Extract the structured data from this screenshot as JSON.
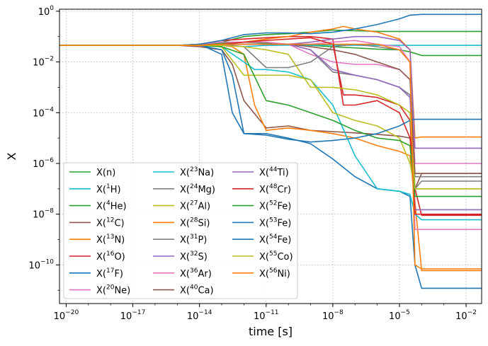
{
  "chart_data": {
    "type": "line",
    "title": "",
    "xlabel": "time [s]",
    "ylabel": "X",
    "xscale": "log",
    "yscale": "log",
    "xlim": [
      5e-21,
      0.05
    ],
    "ylim": [
      3e-12,
      1.2
    ],
    "x_ticks": [
      {
        "value": 1e-20,
        "base": "10",
        "exp": "−20"
      },
      {
        "value": 1e-17,
        "base": "10",
        "exp": "−17"
      },
      {
        "value": 1e-14,
        "base": "10",
        "exp": "−14"
      },
      {
        "value": 1e-11,
        "base": "10",
        "exp": "−11"
      },
      {
        "value": 1e-08,
        "base": "10",
        "exp": "−8"
      },
      {
        "value": 1e-05,
        "base": "10",
        "exp": "−5"
      },
      {
        "value": 0.01,
        "base": "10",
        "exp": "−2"
      }
    ],
    "y_ticks": [
      {
        "value": 1,
        "base": "10",
        "exp": "0"
      },
      {
        "value": 0.01,
        "base": "10",
        "exp": "−2"
      },
      {
        "value": 0.0001,
        "base": "10",
        "exp": "−4"
      },
      {
        "value": 1e-06,
        "base": "10",
        "exp": "−6"
      },
      {
        "value": 1e-08,
        "base": "10",
        "exp": "−8"
      },
      {
        "value": 1e-10,
        "base": "10",
        "exp": "−10"
      }
    ],
    "grid": true,
    "legend": {
      "placement": "lower-left",
      "columns": 3
    },
    "series": [
      {
        "pre": "X(",
        "sup": "",
        "el": "n",
        "post": ")",
        "color": "#2ca02c",
        "x": [
          5e-21,
          1e-15,
          1e-12,
          1e-10,
          1e-08,
          1e-06,
          1e-05,
          3e-05,
          0.0001,
          0.05
        ],
        "y": [
          0.045,
          0.045,
          0.06,
          0.05,
          0.04,
          0.032,
          0.03,
          0.025,
          0.018,
          0.018
        ]
      },
      {
        "pre": "X(",
        "sup": "1",
        "el": "H",
        "post": ")",
        "color": "#17becf",
        "x": [
          5e-21,
          1e-14,
          1e-13,
          1e-12,
          1e-11,
          1e-10,
          1e-09,
          1e-08,
          1e-07,
          1e-06,
          0.05
        ],
        "y": [
          0.045,
          0.045,
          0.05,
          0.04,
          0.045,
          0.046,
          0.046,
          0.046,
          0.045,
          0.045,
          0.045
        ]
      },
      {
        "pre": "X(",
        "sup": "4",
        "el": "He",
        "post": ")",
        "color": "#2ca02c",
        "x": [
          5e-21,
          1e-14,
          1e-13,
          1e-12,
          1e-11,
          1e-10,
          1e-09,
          1e-08,
          1e-07,
          1e-06,
          1e-05,
          0.05
        ],
        "y": [
          0.045,
          0.045,
          0.06,
          0.1,
          0.12,
          0.13,
          0.15,
          0.18,
          0.17,
          0.16,
          0.16,
          0.16
        ]
      },
      {
        "pre": "X(",
        "sup": "12",
        "el": "C",
        "post": ")",
        "color": "#8c564b",
        "x": [
          5e-21,
          1e-15,
          1e-14,
          1e-13,
          3e-13,
          1e-12,
          1e-11,
          1e-10,
          1e-09,
          1e-08,
          1e-07,
          1e-06,
          1e-05,
          3e-05,
          5e-05,
          0.0001,
          0.05
        ],
        "y": [
          0.045,
          0.045,
          0.04,
          0.03,
          0.008,
          0.0003,
          2.5e-05,
          3e-05,
          2e-05,
          1.8e-05,
          1.6e-05,
          1.4e-05,
          1.2e-05,
          1e-05,
          1e-07,
          4e-07,
          4e-07
        ]
      },
      {
        "pre": "X(",
        "sup": "13",
        "el": "N",
        "post": ")",
        "color": "#ff7f0e",
        "x": [
          5e-21,
          1e-15,
          1e-14,
          1e-13,
          3e-13,
          1e-12,
          3e-12,
          1e-11,
          1e-10,
          1e-09,
          1e-08,
          1e-07,
          1e-06,
          1e-05,
          3e-05,
          5e-05,
          0.0001,
          0.05
        ],
        "y": [
          0.045,
          0.045,
          0.045,
          0.045,
          0.04,
          0.02,
          0.0002,
          2e-05,
          2.5e-05,
          2e-05,
          1.5e-05,
          1e-05,
          5e-06,
          3e-06,
          2e-06,
          3e-08,
          6e-11,
          6e-11
        ]
      },
      {
        "pre": "X(",
        "sup": "16",
        "el": "O",
        "post": ")",
        "color": "#d62728",
        "x": [
          5e-21,
          1e-15,
          1e-14,
          1e-13,
          1e-12,
          1e-11,
          1e-10,
          1e-09,
          1e-08,
          3e-08,
          1e-07,
          1e-06,
          1e-05,
          3e-05,
          5e-05,
          0.0001,
          0.05
        ],
        "y": [
          0.045,
          0.045,
          0.05,
          0.07,
          0.08,
          0.09,
          0.1,
          0.1,
          0.08,
          0.0002,
          0.0002,
          0.0003,
          0.0001,
          1e-05,
          1e-07,
          9e-09,
          9e-09
        ]
      },
      {
        "pre": "X(",
        "sup": "17",
        "el": "F",
        "post": ")",
        "color": "#1f77b4",
        "x": [
          5e-21,
          1e-15,
          1e-14,
          1e-13,
          3e-13,
          1e-12,
          1e-11,
          1e-10,
          1e-09,
          1e-08,
          1e-07,
          1e-06,
          1e-05,
          3e-05,
          5e-05,
          0.0001,
          0.05
        ],
        "y": [
          0.045,
          0.045,
          0.05,
          0.02,
          0.0001,
          1.5e-05,
          1.5e-05,
          1e-05,
          6e-06,
          1.5e-06,
          3e-07,
          1e-07,
          8e-08,
          5e-08,
          1e-10,
          1.2e-11,
          1.2e-11
        ]
      },
      {
        "pre": "X(",
        "sup": "20",
        "el": "Ne",
        "post": ")",
        "color": "#e377c2",
        "x": [
          5e-21,
          1e-15,
          1e-14,
          1e-13,
          1e-12,
          1e-11,
          1e-10,
          1e-09,
          1e-08,
          1e-07,
          1e-06,
          1e-05,
          3e-05,
          5e-05,
          0.0001,
          0.05
        ],
        "y": [
          0.045,
          0.045,
          0.05,
          0.06,
          0.06,
          0.06,
          0.05,
          0.02,
          0.01,
          0.008,
          0.008,
          0.005,
          0.002,
          1e-06,
          1e-06,
          1e-06
        ]
      },
      {
        "pre": "X(",
        "sup": "23",
        "el": "Na",
        "post": ")",
        "color": "#17becf",
        "x": [
          5e-21,
          1e-15,
          1e-14,
          1e-13,
          1e-12,
          3e-12,
          1e-11,
          1e-10,
          1e-09,
          1e-08,
          1e-07,
          1e-06,
          1e-05,
          3e-05,
          5e-05,
          0.0001,
          0.05
        ],
        "y": [
          0.045,
          0.045,
          0.045,
          0.04,
          0.01,
          0.005,
          0.005,
          0.004,
          0.002,
          0.0002,
          2e-06,
          1e-07,
          8e-08,
          6e-08,
          1e-08,
          6e-09,
          6e-09
        ]
      },
      {
        "pre": "X(",
        "sup": "24",
        "el": "Mg",
        "post": ")",
        "color": "#7f7f7f",
        "x": [
          5e-21,
          1e-15,
          1e-14,
          1e-13,
          1e-12,
          1e-11,
          1e-10,
          1e-09,
          1e-08,
          1e-07,
          1e-06,
          1e-05,
          3e-05,
          5e-05,
          0.0001,
          0.05
        ],
        "y": [
          0.045,
          0.045,
          0.045,
          0.05,
          0.04,
          0.006,
          0.006,
          0.01,
          0.04,
          0.05,
          0.04,
          0.03,
          0.01,
          1e-07,
          2e-07,
          2e-07
        ]
      },
      {
        "pre": "X(",
        "sup": "27",
        "el": "Al",
        "post": ")",
        "color": "#bcbd22",
        "x": [
          5e-21,
          1e-15,
          1e-14,
          1e-13,
          1e-12,
          1e-11,
          1e-10,
          1e-09,
          1e-08,
          1e-07,
          1e-06,
          1e-05,
          3e-05,
          5e-05,
          0.0001,
          0.05
        ],
        "y": [
          0.045,
          0.045,
          0.045,
          0.04,
          0.003,
          0.003,
          0.003,
          0.002,
          0.0001,
          5e-05,
          3e-05,
          1e-05,
          1e-06,
          1e-07,
          1e-07,
          1e-07
        ]
      },
      {
        "pre": "X(",
        "sup": "28",
        "el": "Si",
        "post": ")",
        "color": "#ff7f0e",
        "x": [
          5e-21,
          1e-15,
          1e-14,
          1e-13,
          1e-12,
          1e-11,
          1e-10,
          1e-09,
          1e-08,
          3e-08,
          1e-07,
          1e-06,
          1e-05,
          3e-05,
          5e-05,
          0.0001,
          0.05
        ],
        "y": [
          0.045,
          0.045,
          0.045,
          0.05,
          0.06,
          0.08,
          0.1,
          0.15,
          0.2,
          0.25,
          0.2,
          0.15,
          0.08,
          0.03,
          1e-05,
          1.1e-05,
          1.1e-05
        ]
      },
      {
        "pre": "X(",
        "sup": "31",
        "el": "P",
        "post": ")",
        "color": "#7f7f7f",
        "x": [
          5e-21,
          1e-15,
          1e-14,
          1e-13,
          1e-12,
          1e-11,
          1e-10,
          1e-09,
          1e-08,
          1e-07,
          1e-06,
          1e-05,
          3e-05,
          5e-05,
          0.0001,
          0.05
        ],
        "y": [
          0.045,
          0.045,
          0.045,
          0.05,
          0.05,
          0.05,
          0.05,
          0.03,
          0.004,
          0.003,
          0.002,
          0.001,
          0.0005,
          3e-07,
          3e-07,
          3e-07
        ]
      },
      {
        "pre": "X(",
        "sup": "32",
        "el": "S",
        "post": ")",
        "color": "#9467bd",
        "x": [
          5e-21,
          1e-15,
          1e-14,
          1e-13,
          1e-12,
          1e-11,
          1e-10,
          1e-09,
          1e-08,
          1e-07,
          1e-06,
          1e-05,
          3e-05,
          5e-05,
          0.0001,
          0.05
        ],
        "y": [
          0.045,
          0.045,
          0.045,
          0.05,
          0.05,
          0.05,
          0.05,
          0.06,
          0.08,
          0.1,
          0.1,
          0.07,
          0.03,
          4e-06,
          4e-06,
          4e-06
        ]
      },
      {
        "pre": "X(",
        "sup": "36",
        "el": "Ar",
        "post": ")",
        "color": "#e377c2",
        "x": [
          5e-21,
          1e-15,
          1e-14,
          1e-13,
          1e-12,
          1e-11,
          1e-10,
          1e-09,
          1e-08,
          1e-07,
          1e-06,
          1e-05,
          3e-05,
          5e-05,
          0.0001,
          0.05
        ],
        "y": [
          0.045,
          0.045,
          0.045,
          0.05,
          0.05,
          0.05,
          0.05,
          0.05,
          0.06,
          0.07,
          0.05,
          0.04,
          0.01,
          2.5e-09,
          2.5e-09,
          2.5e-09
        ]
      },
      {
        "pre": "X(",
        "sup": "40",
        "el": "Ca",
        "post": ")",
        "color": "#8c564b",
        "x": [
          5e-21,
          1e-15,
          1e-14,
          1e-13,
          1e-12,
          1e-11,
          1e-10,
          1e-09,
          1e-08,
          1e-07,
          1e-06,
          1e-05,
          3e-05,
          5e-05,
          0.0001,
          0.05
        ],
        "y": [
          0.045,
          0.045,
          0.045,
          0.05,
          0.05,
          0.05,
          0.05,
          0.04,
          0.03,
          0.02,
          0.01,
          0.005,
          0.002,
          4e-07,
          4e-07,
          4e-07
        ]
      },
      {
        "pre": "X(",
        "sup": "44",
        "el": "Ti",
        "post": ")",
        "color": "#9467bd",
        "x": [
          5e-21,
          1e-15,
          1e-14,
          1e-13,
          1e-12,
          1e-11,
          1e-10,
          1e-09,
          1e-08,
          1e-07,
          1e-06,
          1e-05,
          3e-05,
          5e-05,
          0.0001,
          0.05
        ],
        "y": [
          0.045,
          0.045,
          0.045,
          0.05,
          0.05,
          0.05,
          0.05,
          0.03,
          0.005,
          0.003,
          0.002,
          0.001,
          0.0004,
          1.5e-08,
          1.5e-08,
          1.5e-08
        ]
      },
      {
        "pre": "X(",
        "sup": "48",
        "el": "Cr",
        "post": ")",
        "color": "#d62728",
        "x": [
          5e-21,
          1e-15,
          1e-14,
          1e-13,
          1e-12,
          1e-11,
          1e-10,
          1e-09,
          1e-08,
          3e-08,
          1e-07,
          1e-06,
          1e-05,
          3e-05,
          5e-05,
          0.0001,
          0.05
        ],
        "y": [
          0.045,
          0.045,
          0.045,
          0.05,
          0.06,
          0.07,
          0.08,
          0.09,
          0.05,
          0.0005,
          0.0005,
          0.0004,
          0.0002,
          5e-05,
          1e-08,
          1e-08,
          1e-08
        ]
      },
      {
        "pre": "X(",
        "sup": "52",
        "el": "Fe",
        "post": ")",
        "color": "#2ca02c",
        "x": [
          5e-21,
          1e-15,
          1e-14,
          1e-13,
          1e-12,
          1e-11,
          1e-10,
          1e-09,
          1e-08,
          1e-07,
          1e-06,
          1e-05,
          3e-05,
          5e-05,
          0.0001,
          0.05
        ],
        "y": [
          0.045,
          0.045,
          0.045,
          0.04,
          0.02,
          0.0003,
          0.0002,
          0.0001,
          5e-05,
          2e-05,
          1e-05,
          8e-06,
          5e-06,
          5e-08,
          5e-08,
          5e-08
        ]
      },
      {
        "pre": "X(",
        "sup": "53",
        "el": "Fe",
        "post": ")",
        "color": "#1f77b4",
        "x": [
          5e-21,
          1e-15,
          1e-14,
          1e-13,
          3e-13,
          1e-12,
          1e-11,
          1e-10,
          1e-09,
          1e-08,
          1e-07,
          1e-06,
          1e-05,
          3e-05,
          5e-05,
          0.0001,
          0.05
        ],
        "y": [
          0.045,
          0.045,
          0.045,
          0.03,
          0.003,
          1.5e-05,
          1.3e-05,
          9e-06,
          7e-06,
          8e-06,
          1e-05,
          1.5e-05,
          3e-05,
          5e-05,
          5.5e-05,
          5.5e-05,
          5.5e-05
        ]
      },
      {
        "pre": "X(",
        "sup": "54",
        "el": "Fe",
        "post": ")",
        "color": "#1f77b4",
        "x": [
          5e-21,
          1e-15,
          1e-14,
          1e-13,
          1e-12,
          1e-11,
          1e-10,
          1e-09,
          1e-08,
          1e-07,
          1e-06,
          1e-05,
          3e-05,
          0.0001,
          0.05
        ],
        "y": [
          0.045,
          0.045,
          0.05,
          0.07,
          0.12,
          0.14,
          0.14,
          0.13,
          0.15,
          0.2,
          0.3,
          0.5,
          0.7,
          0.75,
          0.75
        ]
      },
      {
        "pre": "X(",
        "sup": "55",
        "el": "Co",
        "post": ")",
        "color": "#bcbd22",
        "x": [
          5e-21,
          1e-15,
          1e-14,
          1e-13,
          1e-12,
          1e-11,
          1e-10,
          1e-09,
          1e-08,
          1e-07,
          1e-06,
          1e-05,
          3e-05,
          5e-05,
          0.0001,
          0.05
        ],
        "y": [
          0.045,
          0.045,
          0.045,
          0.045,
          0.04,
          0.03,
          0.02,
          0.001,
          0.001,
          0.0008,
          0.0005,
          0.0002,
          0.0001,
          1e-07,
          1e-07,
          1e-07
        ]
      },
      {
        "pre": "X(",
        "sup": "56",
        "el": "Ni",
        "post": ")",
        "color": "#ff7f0e",
        "x": [
          5e-21,
          1e-15,
          1e-14,
          1e-13,
          1e-12,
          1e-11,
          1e-10,
          1e-09,
          1e-08,
          1e-07,
          1e-06,
          1e-05,
          3e-05,
          5e-05,
          0.0001,
          0.05
        ],
        "y": [
          0.045,
          0.045,
          0.045,
          0.05,
          0.05,
          0.05,
          0.05,
          0.05,
          0.05,
          0.05,
          0.05,
          0.03,
          0.01,
          1e-10,
          7e-11,
          7e-11
        ]
      }
    ]
  }
}
